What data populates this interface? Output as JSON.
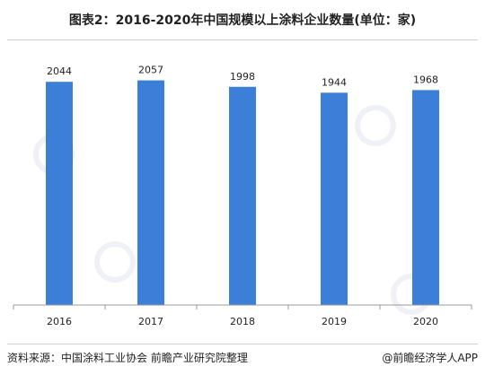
{
  "title": "图表2：2016-2020年中国规模以上涂料企业数量(单位：家)",
  "footer": {
    "source": "资料来源：中国涂料工业协会 前瞻产业研究院整理",
    "credit": "@前瞻经济学人APP"
  },
  "colors": {
    "bar": "#3b7fd9",
    "axis": "#999999",
    "label": "#222222"
  },
  "chart_data": {
    "type": "bar",
    "title": "图表2：2016-2020年中国规模以上涂料企业数量(单位：家)",
    "categories": [
      "2016",
      "2017",
      "2018",
      "2019",
      "2020"
    ],
    "values": [
      2044,
      2057,
      1998,
      1944,
      1968
    ],
    "ylim": [
      0,
      2300
    ],
    "grid": false,
    "legend": "none"
  }
}
